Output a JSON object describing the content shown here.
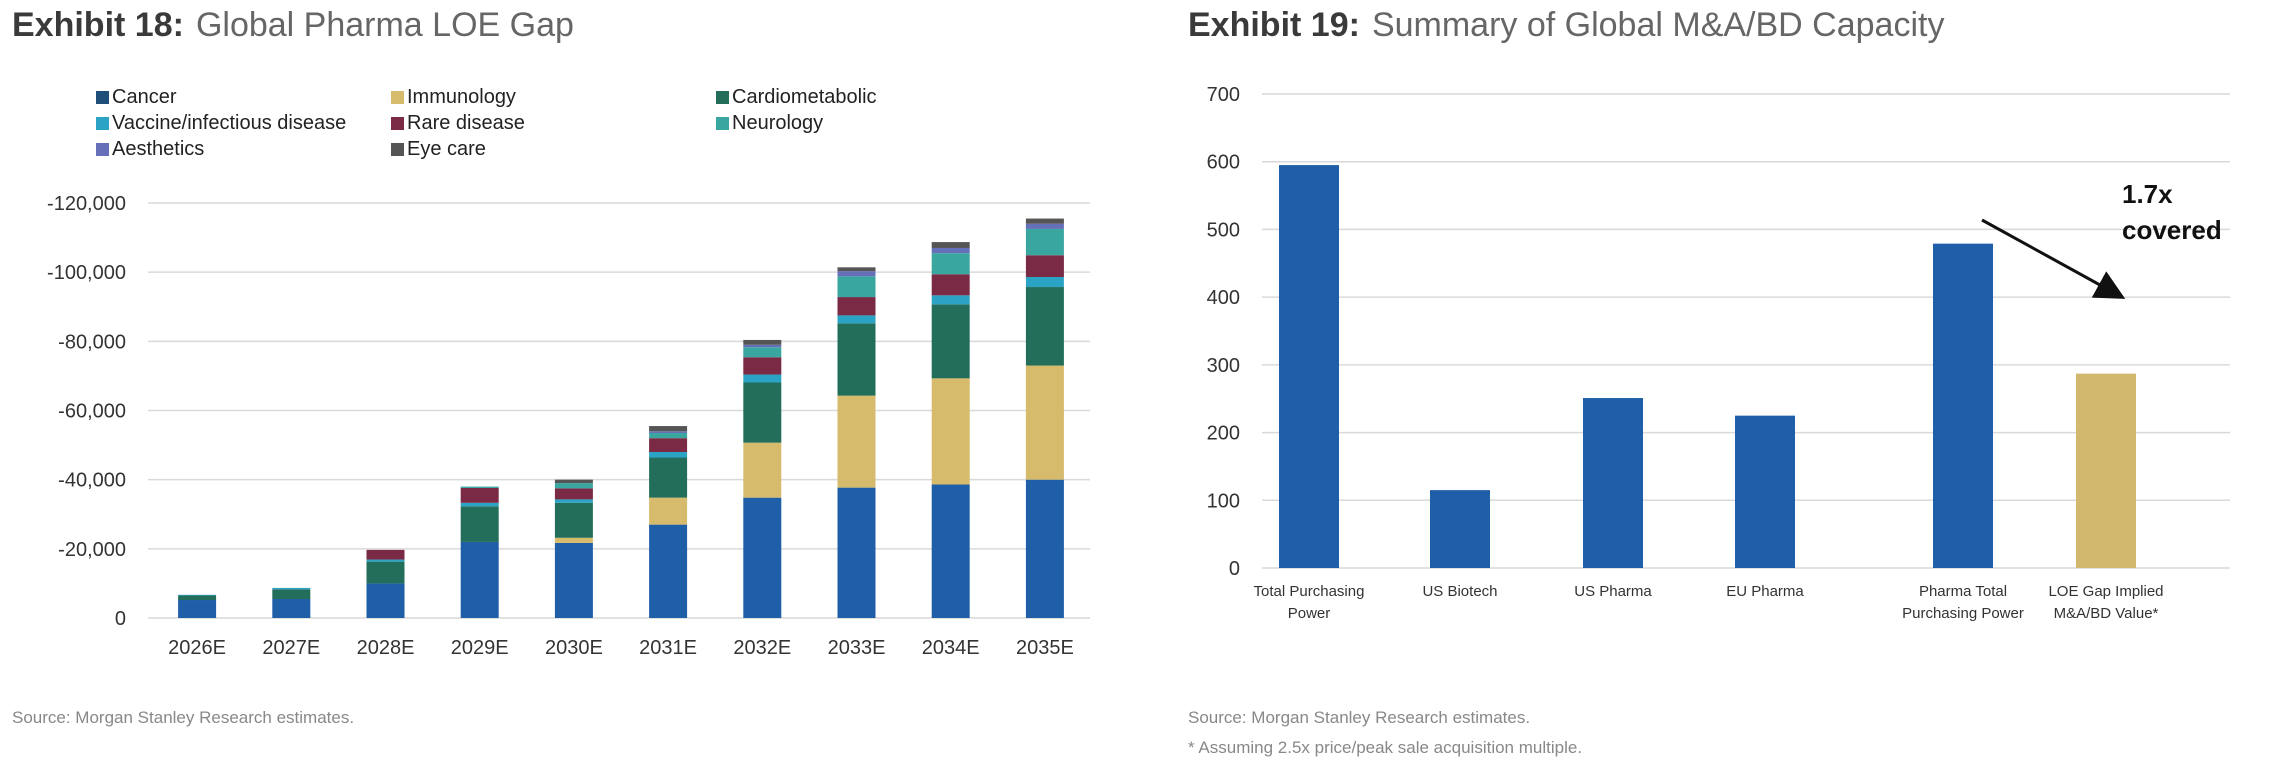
{
  "exhibits": [
    {
      "number": "Exhibit 18:",
      "title": "Global Pharma LOE Gap",
      "source": "Source: Morgan Stanley Research estimates."
    },
    {
      "number": "Exhibit 19:",
      "title": "Summary of Global M&A/BD Capacity",
      "source": "Source: Morgan Stanley Research estimates.",
      "footnote": "* Assuming 2.5x price/peak sale acquisition multiple."
    }
  ],
  "chart_data": [
    {
      "type": "bar",
      "stacked": true,
      "title": "Global Pharma LOE Gap",
      "xlabel": "",
      "ylabel": "",
      "ylim": [
        0,
        -120000
      ],
      "yticks": [
        0,
        -20000,
        -40000,
        -60000,
        -80000,
        -100000,
        -120000
      ],
      "ytick_labels": [
        "0",
        "-20,000",
        "-40,000",
        "-60,000",
        "-80,000",
        "-100,000",
        "-120,000"
      ],
      "grid": true,
      "legend_position": "top",
      "categories": [
        "2026E",
        "2027E",
        "2028E",
        "2029E",
        "2030E",
        "2031E",
        "2032E",
        "2033E",
        "2034E",
        "2035E"
      ],
      "series": [
        {
          "name": "Cancer",
          "color": "#1f5fa8",
          "legend_color": "#1f4e79",
          "values": [
            -5200,
            -5500,
            -10000,
            -22000,
            -21700,
            -27000,
            -34800,
            -37700,
            -38600,
            -40000
          ]
        },
        {
          "name": "Immunology",
          "color": "#d6bb6c",
          "values": [
            0,
            0,
            0,
            0,
            -1500,
            -7800,
            -15900,
            -26600,
            -30700,
            -33000
          ]
        },
        {
          "name": "Cardiometabolic",
          "color": "#236e5a",
          "values": [
            -1300,
            -2800,
            -6300,
            -10300,
            -10100,
            -11600,
            -17400,
            -20900,
            -21400,
            -22700
          ]
        },
        {
          "name": "Vaccine/infectious disease",
          "color": "#2ba3c4",
          "values": [
            -200,
            -400,
            -600,
            -1000,
            -1000,
            -1600,
            -2300,
            -2300,
            -2600,
            -2900
          ]
        },
        {
          "name": "Rare disease",
          "color": "#7a2a45",
          "values": [
            0,
            0,
            -2800,
            -4300,
            -3200,
            -4000,
            -5000,
            -5300,
            -6100,
            -6300
          ]
        },
        {
          "name": "Neurology",
          "color": "#3aa6a0",
          "values": [
            0,
            0,
            0,
            -400,
            -1500,
            -1500,
            -2900,
            -6000,
            -6100,
            -7600
          ]
        },
        {
          "name": "Aesthetics",
          "color": "#6670b8",
          "values": [
            0,
            0,
            0,
            0,
            0,
            -500,
            -700,
            -1500,
            -1500,
            -1500
          ]
        },
        {
          "name": "Eye care",
          "color": "#555555",
          "values": [
            0,
            0,
            0,
            0,
            -1000,
            -1500,
            -1400,
            -1100,
            -1700,
            -1500
          ]
        }
      ]
    },
    {
      "type": "bar",
      "title": "Summary of Global M&A/BD Capacity",
      "xlabel": "",
      "ylabel": "",
      "ylim": [
        0,
        700
      ],
      "yticks": [
        0,
        100,
        200,
        300,
        400,
        500,
        600,
        700
      ],
      "grid": true,
      "categories": [
        [
          "Total Purchasing",
          "Power"
        ],
        [
          "US Biotech"
        ],
        [
          "US Pharma"
        ],
        [
          "EU Pharma"
        ],
        [
          "Pharma Total",
          "Purchasing Power"
        ],
        [
          "LOE Gap Implied",
          "M&A/BD Value*"
        ]
      ],
      "values": [
        595,
        115,
        251,
        225,
        479,
        287
      ],
      "colors": [
        "#1f5fa8",
        "#1f5fa8",
        "#1f5fa8",
        "#1f5fa8",
        "#1f5fa8",
        "#d2b76e"
      ],
      "annotation": {
        "lines": [
          "1.7x",
          "covered"
        ],
        "arrow": "from Pharma Total Purchasing Power toward LOE Gap Implied M&A/BD Value*"
      }
    }
  ]
}
